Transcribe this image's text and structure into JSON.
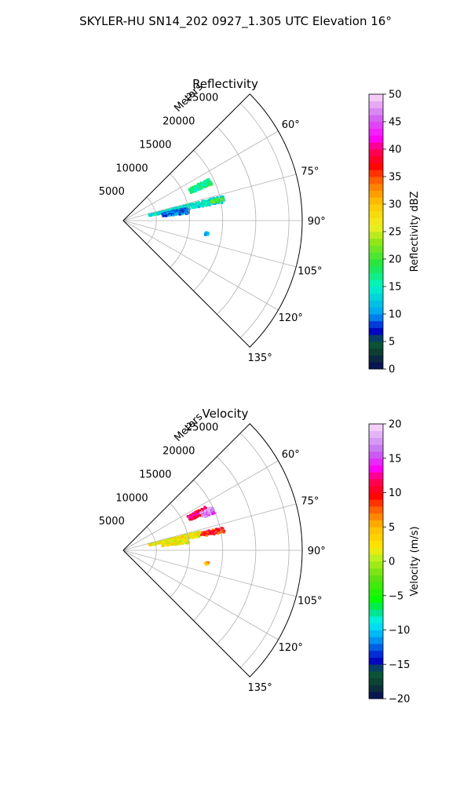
{
  "figure_title": "SKYLER-HU  SN14_202  0927_1.305 UTC Elevation 16°",
  "chart_data": [
    {
      "type": "polar-sector",
      "title": "Reflectivity",
      "range_axis_label": "Meters",
      "range_ticks": [
        5000,
        10000,
        15000,
        20000,
        25000
      ],
      "range_tick_labels": [
        "5000",
        "10000",
        "15000",
        "20000",
        "25000"
      ],
      "range_max": 27000,
      "azimuth_range_deg": [
        45,
        135
      ],
      "azimuth_ticks": [
        60,
        75,
        90,
        105,
        120,
        135
      ],
      "azimuth_tick_labels": [
        "60°",
        "75°",
        "90°",
        "105°",
        "120°",
        "135°"
      ],
      "grid": true,
      "colorbar": {
        "label": "Reflectivity dBZ",
        "min": 0,
        "max": 50,
        "ticks": [
          0,
          5,
          10,
          15,
          20,
          25,
          30,
          35,
          40,
          45,
          50
        ],
        "tick_labels": [
          "0",
          "5",
          "10",
          "15",
          "20",
          "25",
          "30",
          "35",
          "40",
          "45",
          "50"
        ]
      },
      "echoes": [
        {
          "az": [
            64,
            68
          ],
          "range": [
            11000,
            14500
          ],
          "value": 17
        },
        {
          "az": [
            76,
            80
          ],
          "range": [
            4000,
            15500
          ],
          "value": 14
        },
        {
          "az": [
            77,
            79
          ],
          "range": [
            13500,
            15500
          ],
          "value": 20
        },
        {
          "az": [
            79,
            84
          ],
          "range": [
            6000,
            10000
          ],
          "value": 9
        },
        {
          "az": [
            98,
            100
          ],
          "range": [
            12500,
            13000
          ],
          "value": 11
        }
      ]
    },
    {
      "type": "polar-sector",
      "title": "Velocity",
      "range_axis_label": "Meters",
      "range_ticks": [
        5000,
        10000,
        15000,
        20000,
        25000
      ],
      "range_tick_labels": [
        "5000",
        "10000",
        "15000",
        "20000",
        "25000"
      ],
      "range_max": 27000,
      "azimuth_range_deg": [
        45,
        135
      ],
      "azimuth_ticks": [
        60,
        75,
        90,
        105,
        120,
        135
      ],
      "azimuth_tick_labels": [
        "60°",
        "75°",
        "90°",
        "105°",
        "120°",
        "135°"
      ],
      "grid": true,
      "colorbar": {
        "label": "Velocity (m/s)",
        "min": -20,
        "max": 20,
        "ticks": [
          -20,
          -15,
          -10,
          -5,
          0,
          5,
          10,
          15,
          20
        ],
        "tick_labels": [
          "−20",
          "−15",
          "−10",
          "−5",
          "0",
          "5",
          "10",
          "15",
          "20"
        ]
      },
      "echoes": [
        {
          "az": [
            62,
            66
          ],
          "range": [
            11000,
            14000
          ],
          "value": 12
        },
        {
          "az": [
            64,
            68
          ],
          "range": [
            13000,
            15000
          ],
          "value": 17
        },
        {
          "az": [
            76,
            80
          ],
          "range": [
            4000,
            12000
          ],
          "value": 2
        },
        {
          "az": [
            77,
            80
          ],
          "range": [
            12000,
            15500
          ],
          "value": 9
        },
        {
          "az": [
            79,
            84
          ],
          "range": [
            6000,
            10000
          ],
          "value": 2
        },
        {
          "az": [
            98,
            100
          ],
          "range": [
            12500,
            13000
          ],
          "value": 6
        }
      ]
    }
  ]
}
